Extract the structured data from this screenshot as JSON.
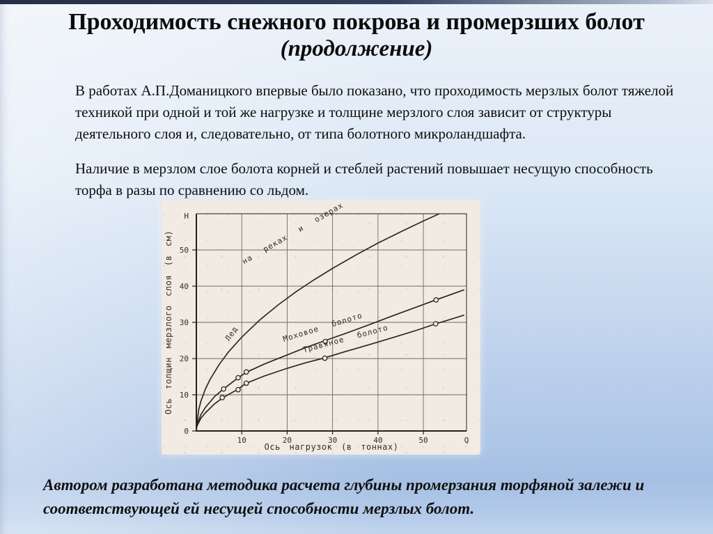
{
  "slide": {
    "title": {
      "line1": "Проходимость снежного покрова и промерзших болот",
      "line2": "(продолжение)"
    },
    "paragraph1": {
      "lines": [
        "В работах А.П.Доманицкого впервые было показано, что проходимость мерзлых болот тяжелой",
        "техникой при одной и той же нагрузке и толщине мерзлого слоя зависит от структуры",
        "деятельного слоя и, следовательно, от типа болотного микроландшафта."
      ]
    },
    "paragraph2": {
      "lines": [
        "Наличие в мерзлом слое болота корней и стеблей растений повышает несущую способность",
        "торфа в разы по сравнению со льдом."
      ]
    },
    "footer": {
      "lines": [
        "Автором разработана методика расчета глубины промерзания торфяной залежи и",
        "соответствующей ей несущей способности мерзлых болот."
      ]
    }
  },
  "colors": {
    "background_top": "#ebf1f9",
    "background_bottom": "#a6c0e4",
    "top_strip": "#252e44",
    "text": "#0d0d0d",
    "scan_paper": "#f2ebe3",
    "chart_ink": "#2b2822"
  },
  "chart_data": {
    "type": "line",
    "title": "",
    "xlabel": "Ось нагрузок (в тоннах)",
    "ylabel": "Ось толщин мерзлого слоя (в см)",
    "x_axis_arrow_label": "Q",
    "y_axis_arrow_label": "Н",
    "x_ticks": [
      10,
      20,
      30,
      40,
      50
    ],
    "y_ticks": [
      0,
      10,
      20,
      30,
      40,
      50
    ],
    "xlim": [
      0,
      59.5
    ],
    "ylim": [
      0,
      60
    ],
    "grid": true,
    "legend_position": "labels-along-curves",
    "series": [
      {
        "name": "Лед на реках и озерах",
        "points": [
          [
            0,
            0
          ],
          [
            0.5,
            5.8
          ],
          [
            1,
            8.2
          ],
          [
            2,
            11.6
          ],
          [
            3,
            14.2
          ],
          [
            5,
            18.3
          ],
          [
            7,
            21.7
          ],
          [
            10,
            25.9
          ],
          [
            14,
            30.7
          ],
          [
            18,
            34.8
          ],
          [
            22,
            38.5
          ],
          [
            26,
            41.8
          ],
          [
            30,
            44.9
          ],
          [
            35,
            48.5
          ],
          [
            40,
            51.9
          ],
          [
            45,
            55
          ],
          [
            50,
            58
          ],
          [
            53.5,
            60
          ]
        ],
        "markers": []
      },
      {
        "name": "Моховое болото",
        "points": [
          [
            0,
            1
          ],
          [
            1,
            4.5
          ],
          [
            2,
            6.5
          ],
          [
            4,
            9.5
          ],
          [
            6,
            11.6
          ],
          [
            9,
            14.5
          ],
          [
            11,
            16.2
          ],
          [
            15,
            18.5
          ],
          [
            20,
            21
          ],
          [
            24,
            23
          ],
          [
            28,
            24.8
          ],
          [
            33,
            27
          ],
          [
            38,
            29.3
          ],
          [
            43,
            31.7
          ],
          [
            48,
            34
          ],
          [
            53,
            36.3
          ],
          [
            59,
            39
          ]
        ],
        "markers": [
          [
            6,
            11.6
          ],
          [
            9.2,
            14.7
          ],
          [
            11,
            16.3
          ],
          [
            28.4,
            24.7
          ],
          [
            52.8,
            36.2
          ]
        ]
      },
      {
        "name": "Травяное болото",
        "points": [
          [
            0,
            1
          ],
          [
            1,
            3.5
          ],
          [
            2,
            5
          ],
          [
            4,
            7.5
          ],
          [
            6,
            9.3
          ],
          [
            9,
            11.4
          ],
          [
            11,
            13.2
          ],
          [
            15,
            15.2
          ],
          [
            20,
            17.3
          ],
          [
            24,
            18.8
          ],
          [
            28,
            20.1
          ],
          [
            33,
            22
          ],
          [
            38,
            23.8
          ],
          [
            43,
            25.7
          ],
          [
            48,
            27.6
          ],
          [
            53,
            29.7
          ],
          [
            59,
            32
          ]
        ],
        "markers": [
          [
            5.7,
            9.2
          ],
          [
            9.2,
            11.4
          ],
          [
            11,
            13.2
          ],
          [
            28.3,
            20.1
          ],
          [
            52.7,
            29.6
          ]
        ]
      }
    ],
    "curve_labels": [
      {
        "text": "Лед",
        "x": 8.2,
        "y": 26.5,
        "angle": -55
      },
      {
        "text": "на реках и озерах",
        "x": 21.5,
        "y": 54,
        "angle": -30
      },
      {
        "text": "Моховое болото",
        "x": 28,
        "y": 28,
        "angle": -17
      },
      {
        "text": "Травяное болото",
        "x": 33,
        "y": 24.8,
        "angle": -15
      }
    ]
  }
}
